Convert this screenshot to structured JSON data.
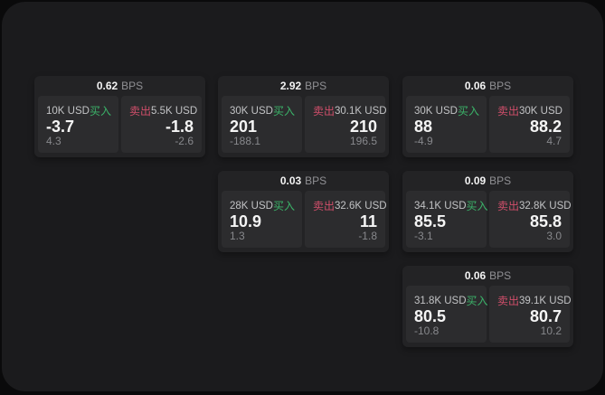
{
  "labels": {
    "bps": "BPS",
    "buy": "买入",
    "sell": "卖出"
  },
  "colors": {
    "buy_green": "#3bb369",
    "sell_red": "#d04e6a",
    "panel_bg": "#1b1b1d",
    "card_bg": "#232325",
    "tile_bg": "#2c2c2e",
    "outer_bg": "#0a0a0b",
    "value_white": "#f5f5f5",
    "muted_gray": "#87888c"
  },
  "cards": [
    {
      "bps": "0.62",
      "buy": {
        "amount": "10K USD",
        "value": "-3.7",
        "delta": "4.3"
      },
      "sell": {
        "amount": "5.5K USD",
        "value": "-1.8",
        "delta": "-2.6"
      }
    },
    {
      "bps": "2.92",
      "buy": {
        "amount": "30K USD",
        "value": "201",
        "delta": "-188.1"
      },
      "sell": {
        "amount": "30.1K USD",
        "value": "210",
        "delta": "196.5"
      }
    },
    {
      "bps": "0.06",
      "buy": {
        "amount": "30K USD",
        "value": "88",
        "delta": "-4.9"
      },
      "sell": {
        "amount": "30K USD",
        "value": "88.2",
        "delta": "4.7"
      }
    },
    {
      "bps": "0.03",
      "buy": {
        "amount": "28K USD",
        "value": "10.9",
        "delta": "1.3"
      },
      "sell": {
        "amount": "32.6K USD",
        "value": "11",
        "delta": "-1.8"
      }
    },
    {
      "bps": "0.09",
      "buy": {
        "amount": "34.1K USD",
        "value": "85.5",
        "delta": "-3.1"
      },
      "sell": {
        "amount": "32.8K USD",
        "value": "85.8",
        "delta": "3.0"
      }
    },
    {
      "bps": "0.06",
      "buy": {
        "amount": "31.8K USD",
        "value": "80.5",
        "delta": "-10.8"
      },
      "sell": {
        "amount": "39.1K USD",
        "value": "80.7",
        "delta": "10.2"
      }
    }
  ]
}
